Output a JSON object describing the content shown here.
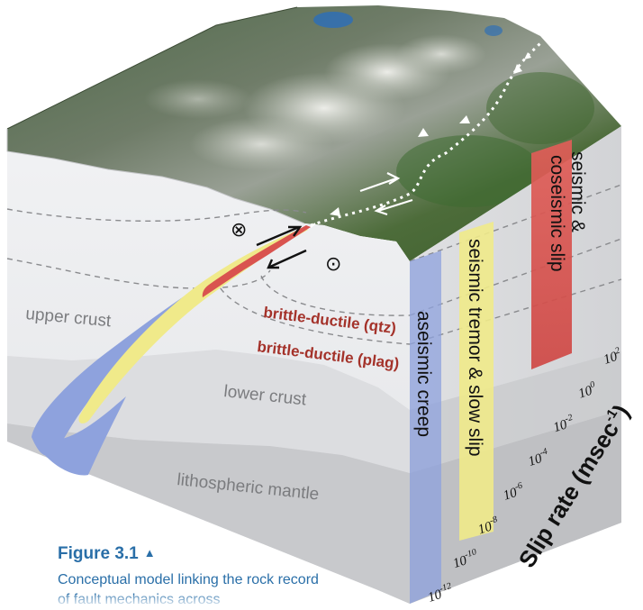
{
  "diagram": {
    "layers": {
      "upper_crust": "upper crust",
      "lower_crust": "lower crust",
      "mantle": "lithospheric mantle"
    },
    "transitions": {
      "qtz": "brittle-ductile (qtz)",
      "plag": "brittle-ductile (plag)"
    },
    "columns": {
      "aseismic": "aseismic creep",
      "tremor": "seismic tremor & slow slip",
      "seismic_line1": "seismic &",
      "seismic_line2": "coseismic slip"
    },
    "axis": {
      "label": "Slip rate (msec",
      "label_sup": "-1",
      "label_close": ")",
      "ticks": [
        {
          "base": "10",
          "exp": "2"
        },
        {
          "base": "10",
          "exp": "0"
        },
        {
          "base": "10",
          "exp": "-2"
        },
        {
          "base": "10",
          "exp": "-4"
        },
        {
          "base": "10",
          "exp": "-6"
        },
        {
          "base": "10",
          "exp": "-8"
        },
        {
          "base": "10",
          "exp": "-10"
        },
        {
          "base": "10",
          "exp": "-12"
        }
      ]
    },
    "symbols": {
      "into_page": "⊗",
      "out_of_page": "⊙"
    },
    "colors": {
      "seismic": "#d9534f",
      "tremor": "#f0ea8a",
      "aseismic": "#8ea2dd",
      "text_red": "#a4322a",
      "caption_blue": "#2a6fa8"
    }
  },
  "caption": {
    "title": "Figure 3.1",
    "title_icon": "▲",
    "text": "Conceptual model linking the rock record of fault mechanics across"
  }
}
